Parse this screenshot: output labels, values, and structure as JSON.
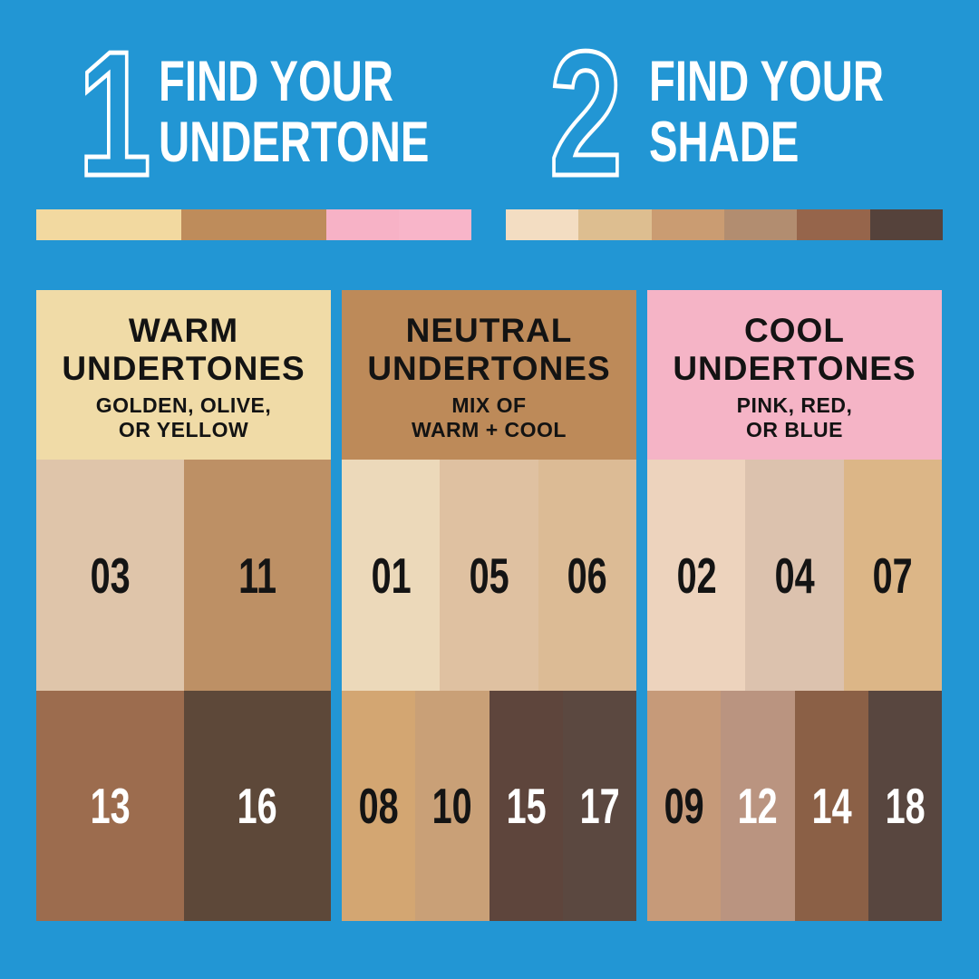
{
  "canvas": {
    "background": "#2296D4"
  },
  "steps": [
    {
      "number": "1",
      "title_line1": "FIND YOUR",
      "title_line2": "UNDERTONE",
      "bar": [
        {
          "name": "warm-undertone-swatch",
          "color": "#F2D9A0"
        },
        {
          "name": "neutral-undertone-swatch",
          "color": "#BE8C5B"
        },
        {
          "name": "cool-undertone-swatch-left",
          "color": "#F7B2C6"
        },
        {
          "name": "cool-undertone-swatch-right",
          "color": "#F8B5C9"
        }
      ]
    },
    {
      "number": "2",
      "title_line1": "FIND YOUR",
      "title_line2": "SHADE",
      "bar": [
        {
          "name": "shade-swatch-1",
          "color": "#F3DDC2"
        },
        {
          "name": "shade-swatch-2",
          "color": "#DDBE90"
        },
        {
          "name": "shade-swatch-3",
          "color": "#CA9C72"
        },
        {
          "name": "shade-swatch-4",
          "color": "#B28D70"
        },
        {
          "name": "shade-swatch-5",
          "color": "#96654B"
        },
        {
          "name": "shade-swatch-6",
          "color": "#55423B"
        }
      ]
    }
  ],
  "columns": [
    {
      "id": "warm",
      "header": {
        "bg": "#F0DBA7",
        "title_line1": "WARM",
        "title_line2": "UNDERTONES",
        "subtitle_line1": "GOLDEN, OLIVE,",
        "subtitle_line2": "OR YELLOW"
      },
      "top_row": [
        {
          "label": "03",
          "color": "#DFC5AA",
          "text": "#141414"
        },
        {
          "label": "11",
          "color": "#BD9065",
          "text": "#141414"
        }
      ],
      "bottom_row": [
        {
          "label": "13",
          "color": "#9C6C4E",
          "text": "#FFFFFF"
        },
        {
          "label": "16",
          "color": "#5D4839",
          "text": "#FFFFFF"
        }
      ]
    },
    {
      "id": "neutral",
      "header": {
        "bg": "#BD8A59",
        "title_line1": "NEUTRAL",
        "title_line2": "UNDERTONES",
        "subtitle_line1": "MIX OF",
        "subtitle_line2": "WARM + COOL"
      },
      "top_row": [
        {
          "label": "01",
          "color": "#ECD9BA",
          "text": "#141414"
        },
        {
          "label": "05",
          "color": "#DFC1A1",
          "text": "#141414"
        },
        {
          "label": "06",
          "color": "#DCBB95",
          "text": "#141414"
        }
      ],
      "bottom_row": [
        {
          "label": "08",
          "color": "#D3A672",
          "text": "#141414"
        },
        {
          "label": "10",
          "color": "#C9A077",
          "text": "#141414"
        },
        {
          "label": "15",
          "color": "#5E453C",
          "text": "#FFFFFF"
        },
        {
          "label": "17",
          "color": "#5B4840",
          "text": "#FFFFFF"
        }
      ]
    },
    {
      "id": "cool",
      "header": {
        "bg": "#F5B4C6",
        "title_line1": "COOL",
        "title_line2": "UNDERTONES",
        "subtitle_line1": "PINK, RED,",
        "subtitle_line2": "OR BLUE"
      },
      "top_row": [
        {
          "label": "02",
          "color": "#EDD3BD",
          "text": "#141414"
        },
        {
          "label": "04",
          "color": "#DCC2AE",
          "text": "#141414"
        },
        {
          "label": "07",
          "color": "#DCB687",
          "text": "#141414"
        }
      ],
      "bottom_row": [
        {
          "label": "09",
          "color": "#C69A79",
          "text": "#141414"
        },
        {
          "label": "12",
          "color": "#BA9480",
          "text": "#FFFFFF"
        },
        {
          "label": "14",
          "color": "#8B6046",
          "text": "#FFFFFF"
        },
        {
          "label": "18",
          "color": "#58463F",
          "text": "#FFFFFF"
        }
      ]
    }
  ]
}
